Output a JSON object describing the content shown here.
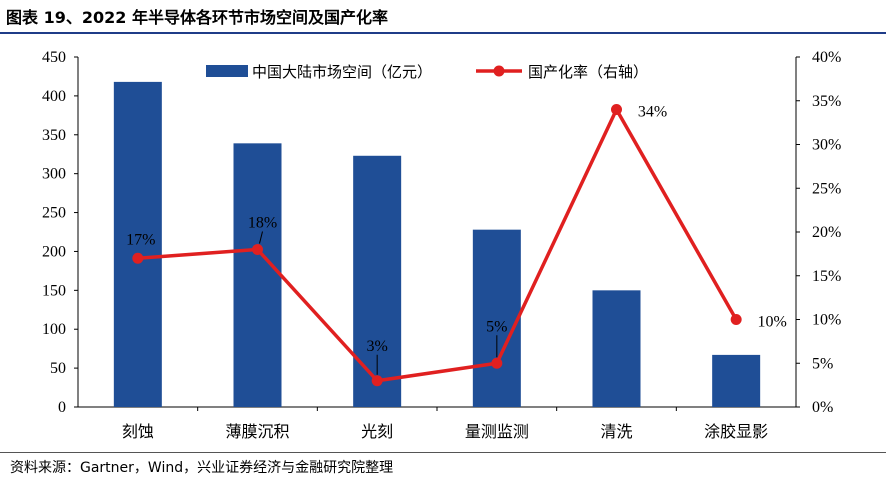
{
  "title": "图表 19、2022 年半导体各环节市场空间及国产化率",
  "source": "资料来源：Gartner，Wind，兴业证券经济与金融研究院整理",
  "colors": {
    "bar": "#1f4e96",
    "line": "#e02020",
    "rule": "#1f3c88"
  },
  "chart_data": {
    "type": "bar",
    "categories": [
      "刻蚀",
      "薄膜沉积",
      "光刻",
      "量测监测",
      "清洗",
      "涂胶显影"
    ],
    "series": [
      {
        "name": "中国大陆市场空间（亿元）",
        "type": "bar",
        "axis": "left",
        "values": [
          418,
          339,
          323,
          228,
          150,
          67
        ]
      },
      {
        "name": "国产化率（右轴）",
        "type": "line",
        "axis": "right",
        "values": [
          17,
          18,
          3,
          5,
          34,
          10
        ]
      }
    ],
    "data_labels": [
      "17%",
      "18%",
      "3%",
      "5%",
      "34%",
      "10%"
    ],
    "y_left": {
      "min": 0,
      "max": 450,
      "ticks": [
        "0",
        "50",
        "100",
        "150",
        "200",
        "250",
        "300",
        "350",
        "400",
        "450"
      ]
    },
    "y_right": {
      "min": 0,
      "max": 40,
      "ticks": [
        "0%",
        "5%",
        "10%",
        "15%",
        "20%",
        "25%",
        "30%",
        "35%",
        "40%"
      ]
    },
    "legend_position": "top-center",
    "grid": false
  }
}
